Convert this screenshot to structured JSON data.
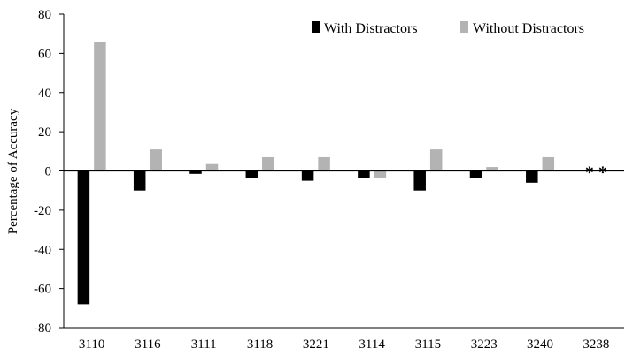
{
  "chart_data": {
    "type": "bar",
    "title": "",
    "xlabel": "",
    "ylabel": "Percentage of Accuracy",
    "ylim": [
      -80,
      80
    ],
    "yticks": [
      -80,
      -60,
      -40,
      -20,
      0,
      20,
      40,
      60,
      80
    ],
    "categories": [
      "3110",
      "3116",
      "3111",
      "3118",
      "3221",
      "3114",
      "3115",
      "3223",
      "3240",
      "3238"
    ],
    "series": [
      {
        "name": "With Distractors",
        "color": "#000000",
        "values": [
          -68,
          -10,
          -1.5,
          -3.5,
          -5,
          -3.5,
          -10,
          -3.5,
          -6,
          0
        ]
      },
      {
        "name": "Without Distractors",
        "color": "#b3b3b3",
        "values": [
          66,
          11,
          3.5,
          7,
          7,
          -3.5,
          11,
          2,
          7,
          0
        ]
      }
    ],
    "legend_position": "top-right",
    "grid": false,
    "annotations": [
      {
        "category": "3238",
        "text": "* *"
      }
    ]
  }
}
